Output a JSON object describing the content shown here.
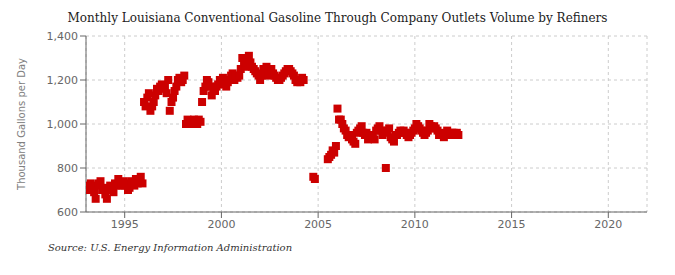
{
  "chart_data": {
    "type": "scatter",
    "title": "Monthly Louisiana Conventional Gasoline Through Company Outlets Volume by Refiners",
    "ylabel": "Thousand Gallons per Day",
    "annotations": [
      "Source: U.S. Energy Information Administration"
    ],
    "color": "#cc0000",
    "marker": "square",
    "grid": true,
    "xlim": [
      1993.0,
      2022.0
    ],
    "ylim": [
      600,
      1400
    ],
    "xticks": [
      1995,
      2000,
      2005,
      2010,
      2015,
      2020
    ],
    "yticks": [
      600,
      800,
      {
        "value": 1000,
        "label": "1,000"
      },
      {
        "value": 1200,
        "label": "1,200"
      },
      {
        "value": 1400,
        "label": "1,400"
      }
    ],
    "x": [
      1993.08,
      1993.17,
      1993.25,
      1993.33,
      1993.42,
      1993.5,
      1993.58,
      1993.67,
      1993.75,
      1993.83,
      1993.92,
      1994.0,
      1994.08,
      1994.17,
      1994.25,
      1994.33,
      1994.42,
      1994.5,
      1994.58,
      1994.67,
      1994.75,
      1994.83,
      1994.92,
      1995.0,
      1995.08,
      1995.17,
      1995.25,
      1995.33,
      1995.42,
      1995.5,
      1995.58,
      1995.67,
      1995.75,
      1995.83,
      1995.92,
      1996.0,
      1996.08,
      1996.17,
      1996.25,
      1996.33,
      1996.42,
      1996.5,
      1996.58,
      1996.67,
      1996.75,
      1996.83,
      1996.92,
      1997.0,
      1997.08,
      1997.17,
      1997.25,
      1997.33,
      1997.42,
      1997.5,
      1997.58,
      1997.67,
      1997.75,
      1997.83,
      1997.92,
      1998.0,
      1998.08,
      1998.17,
      1998.25,
      1998.33,
      1998.42,
      1998.5,
      1998.58,
      1998.67,
      1998.75,
      1998.83,
      1998.92,
      1999.0,
      1999.08,
      1999.17,
      1999.25,
      1999.33,
      1999.42,
      1999.5,
      1999.58,
      1999.67,
      1999.75,
      1999.83,
      1999.92,
      2000.0,
      2000.08,
      2000.17,
      2000.25,
      2000.33,
      2000.42,
      2000.5,
      2000.58,
      2000.67,
      2000.75,
      2000.83,
      2000.92,
      2001.0,
      2001.08,
      2001.17,
      2001.25,
      2001.33,
      2001.42,
      2001.5,
      2001.58,
      2001.67,
      2001.75,
      2001.83,
      2001.92,
      2002.0,
      2002.08,
      2002.17,
      2002.25,
      2002.33,
      2002.42,
      2002.5,
      2002.58,
      2002.67,
      2002.75,
      2002.83,
      2002.92,
      2003.0,
      2003.08,
      2003.17,
      2003.25,
      2003.33,
      2003.42,
      2003.5,
      2003.58,
      2003.67,
      2003.75,
      2003.83,
      2003.92,
      2004.0,
      2004.08,
      2004.17,
      2004.25,
      2004.75,
      2004.83,
      2005.5,
      2005.58,
      2005.67,
      2005.75,
      2005.83,
      2005.92,
      2006.0,
      2006.08,
      2006.17,
      2006.25,
      2006.33,
      2006.42,
      2006.5,
      2006.58,
      2006.67,
      2006.75,
      2006.83,
      2006.92,
      2007.0,
      2007.08,
      2007.17,
      2007.25,
      2007.33,
      2007.42,
      2007.5,
      2007.58,
      2007.67,
      2007.75,
      2007.83,
      2007.92,
      2008.0,
      2008.08,
      2008.17,
      2008.25,
      2008.33,
      2008.42,
      2008.5,
      2008.58,
      2008.67,
      2008.75,
      2008.83,
      2008.92,
      2009.0,
      2009.08,
      2009.17,
      2009.25,
      2009.33,
      2009.42,
      2009.5,
      2009.58,
      2009.67,
      2009.75,
      2009.83,
      2009.92,
      2010.0,
      2010.08,
      2010.17,
      2010.25,
      2010.33,
      2010.42,
      2010.5,
      2010.58,
      2010.67,
      2010.75,
      2010.83,
      2010.92,
      2011.0,
      2011.08,
      2011.17,
      2011.25,
      2011.33,
      2011.42,
      2011.5,
      2011.58,
      2011.67,
      2011.75,
      2011.83,
      2011.92,
      2012.0,
      2012.08,
      2012.17,
      2012.25
    ],
    "values": [
      720,
      700,
      730,
      710,
      690,
      660,
      720,
      730,
      740,
      700,
      710,
      680,
      660,
      700,
      720,
      710,
      690,
      730,
      720,
      750,
      730,
      720,
      740,
      720,
      730,
      700,
      710,
      740,
      730,
      720,
      750,
      730,
      740,
      760,
      730,
      1100,
      1080,
      1120,
      1140,
      1060,
      1080,
      1100,
      1130,
      1160,
      1150,
      1170,
      1180,
      1160,
      1170,
      1140,
      1200,
      1060,
      1100,
      1120,
      1150,
      1170,
      1200,
      1210,
      1190,
      1200,
      1220,
      1000,
      1020,
      1000,
      1010,
      1000,
      1020,
      1010,
      1000,
      1020,
      1010,
      1100,
      1150,
      1170,
      1200,
      1190,
      1170,
      1130,
      1160,
      1150,
      1170,
      1180,
      1200,
      1200,
      1210,
      1180,
      1170,
      1190,
      1200,
      1220,
      1230,
      1200,
      1220,
      1210,
      1220,
      1250,
      1300,
      1280,
      1260,
      1280,
      1310,
      1280,
      1260,
      1250,
      1240,
      1230,
      1220,
      1200,
      1220,
      1250,
      1240,
      1260,
      1220,
      1240,
      1250,
      1230,
      1220,
      1210,
      1200,
      1200,
      1210,
      1220,
      1230,
      1240,
      1250,
      1250,
      1240,
      1230,
      1220,
      1200,
      1190,
      1200,
      1190,
      1210,
      1200,
      760,
      750,
      840,
      850,
      860,
      880,
      870,
      900,
      1070,
      1020,
      1020,
      1000,
      980,
      970,
      950,
      940,
      950,
      930,
      920,
      910,
      960,
      970,
      980,
      990,
      960,
      950,
      960,
      930,
      940,
      950,
      940,
      930,
      970,
      980,
      990,
      970,
      950,
      960,
      800,
      970,
      980,
      940,
      930,
      920,
      950,
      950,
      960,
      970,
      960,
      970,
      960,
      950,
      940,
      950,
      960,
      970,
      980,
      1000,
      990,
      980,
      970,
      960,
      950,
      960,
      970,
      1000,
      990,
      980,
      990,
      980,
      970,
      950,
      960,
      950,
      940,
      950,
      970,
      960,
      950,
      960,
      960,
      950,
      960,
      950
    ]
  }
}
